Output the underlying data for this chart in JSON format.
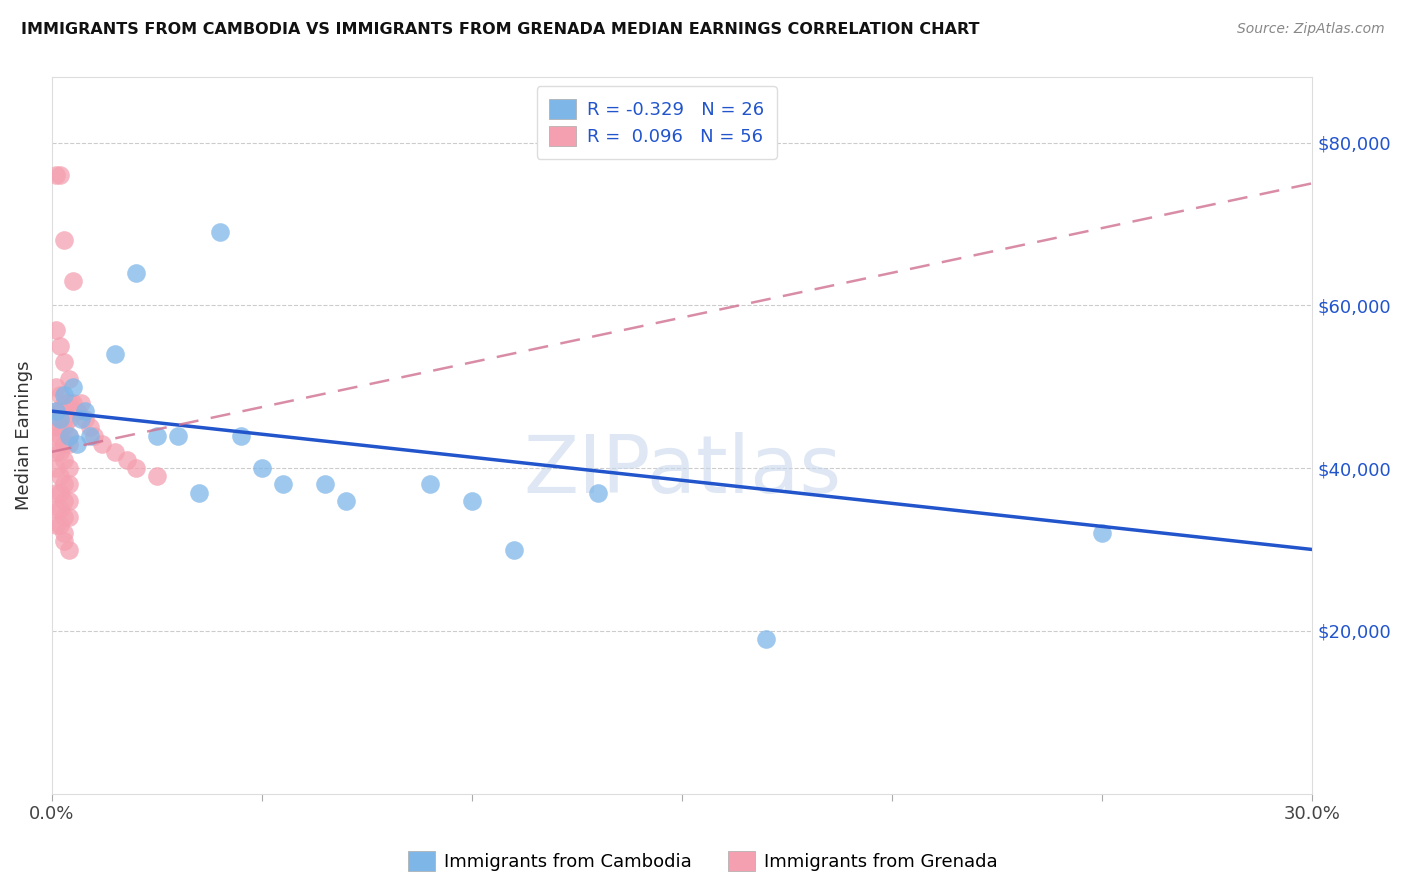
{
  "title": "IMMIGRANTS FROM CAMBODIA VS IMMIGRANTS FROM GRENADA MEDIAN EARNINGS CORRELATION CHART",
  "source": "Source: ZipAtlas.com",
  "ylabel": "Median Earnings",
  "y_ticks": [
    20000,
    40000,
    60000,
    80000
  ],
  "y_tick_labels": [
    "$20,000",
    "$40,000",
    "$60,000",
    "$80,000"
  ],
  "xmin": 0.0,
  "xmax": 0.3,
  "ymin": 0,
  "ymax": 88000,
  "cambodia_color": "#7EB6E8",
  "grenada_color": "#F4A0B0",
  "cambodia_line_color": "#2255CC",
  "grenada_line_color": "#D07090",
  "cambodia_R": -0.329,
  "cambodia_N": 26,
  "grenada_R": 0.096,
  "grenada_N": 56,
  "legend_color": "#2255CC",
  "watermark_text": "ZIPatlas",
  "watermark_color": "#C8D8EC",
  "cambodia_points": [
    [
      0.001,
      47000
    ],
    [
      0.002,
      46000
    ],
    [
      0.003,
      49000
    ],
    [
      0.004,
      44000
    ],
    [
      0.005,
      50000
    ],
    [
      0.006,
      43000
    ],
    [
      0.007,
      46000
    ],
    [
      0.008,
      47000
    ],
    [
      0.009,
      44000
    ],
    [
      0.015,
      54000
    ],
    [
      0.02,
      64000
    ],
    [
      0.025,
      44000
    ],
    [
      0.03,
      44000
    ],
    [
      0.035,
      37000
    ],
    [
      0.04,
      69000
    ],
    [
      0.045,
      44000
    ],
    [
      0.05,
      40000
    ],
    [
      0.055,
      38000
    ],
    [
      0.065,
      38000
    ],
    [
      0.07,
      36000
    ],
    [
      0.09,
      38000
    ],
    [
      0.1,
      36000
    ],
    [
      0.11,
      30000
    ],
    [
      0.13,
      37000
    ],
    [
      0.25,
      32000
    ],
    [
      0.17,
      19000
    ]
  ],
  "grenada_points": [
    [
      0.001,
      76000
    ],
    [
      0.002,
      76000
    ],
    [
      0.003,
      68000
    ],
    [
      0.005,
      63000
    ],
    [
      0.001,
      57000
    ],
    [
      0.002,
      55000
    ],
    [
      0.003,
      53000
    ],
    [
      0.004,
      51000
    ],
    [
      0.001,
      50000
    ],
    [
      0.002,
      49000
    ],
    [
      0.003,
      48000
    ],
    [
      0.004,
      48000
    ],
    [
      0.001,
      47000
    ],
    [
      0.002,
      47000
    ],
    [
      0.003,
      46000
    ],
    [
      0.004,
      46000
    ],
    [
      0.001,
      45000
    ],
    [
      0.002,
      45000
    ],
    [
      0.003,
      45000
    ],
    [
      0.004,
      44000
    ],
    [
      0.001,
      44000
    ],
    [
      0.002,
      44000
    ],
    [
      0.003,
      43000
    ],
    [
      0.004,
      43000
    ],
    [
      0.001,
      42000
    ],
    [
      0.002,
      42000
    ],
    [
      0.003,
      41000
    ],
    [
      0.004,
      40000
    ],
    [
      0.001,
      40000
    ],
    [
      0.002,
      39000
    ],
    [
      0.003,
      38000
    ],
    [
      0.004,
      38000
    ],
    [
      0.001,
      37000
    ],
    [
      0.002,
      37000
    ],
    [
      0.003,
      36000
    ],
    [
      0.004,
      36000
    ],
    [
      0.001,
      35000
    ],
    [
      0.002,
      35000
    ],
    [
      0.003,
      34000
    ],
    [
      0.004,
      34000
    ],
    [
      0.001,
      33000
    ],
    [
      0.002,
      33000
    ],
    [
      0.003,
      32000
    ],
    [
      0.005,
      48000
    ],
    [
      0.006,
      47000
    ],
    [
      0.007,
      48000
    ],
    [
      0.008,
      46000
    ],
    [
      0.009,
      45000
    ],
    [
      0.01,
      44000
    ],
    [
      0.012,
      43000
    ],
    [
      0.015,
      42000
    ],
    [
      0.018,
      41000
    ],
    [
      0.02,
      40000
    ],
    [
      0.025,
      39000
    ],
    [
      0.003,
      31000
    ],
    [
      0.004,
      30000
    ]
  ],
  "x_tick_positions": [
    0.0,
    0.05,
    0.1,
    0.15,
    0.2,
    0.25,
    0.3
  ],
  "x_tick_labels": [
    "0.0%",
    "",
    "",
    "",
    "",
    "",
    "30.0%"
  ]
}
